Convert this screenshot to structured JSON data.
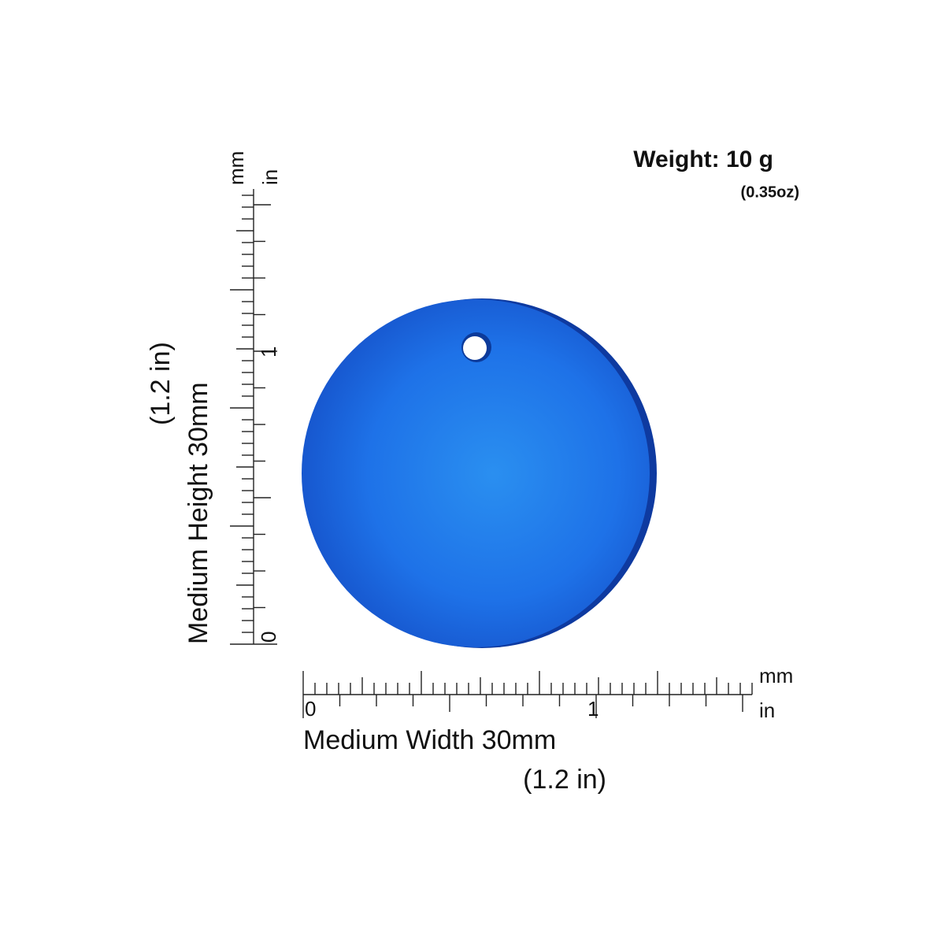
{
  "weight": {
    "title": "Weight: 10 g",
    "subtitle": "(0.35oz)"
  },
  "width_ruler": {
    "unit_top": "mm",
    "unit_bottom": "in",
    "zero": "0",
    "one": "1",
    "label": "Medium Width 30mm",
    "sublabel": "(1.2 in)"
  },
  "height_ruler": {
    "unit_left": "mm",
    "unit_right": "in",
    "zero": "0",
    "one": "1",
    "label": "Medium Height 30mm",
    "sublabel": "(1.2 in)"
  }
}
